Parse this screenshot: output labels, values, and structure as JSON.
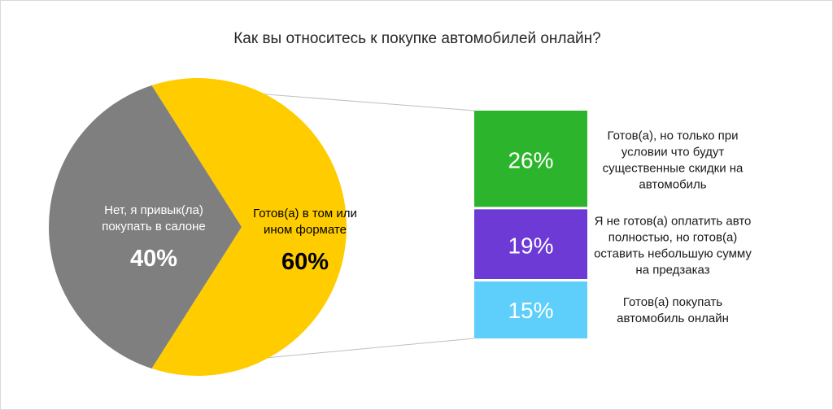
{
  "chart_data": {
    "type": "pie",
    "title": "Как вы относитесь к покупке автомобилей онлайн?",
    "slices": [
      {
        "label_lines": [
          "Нет, я привык(ла)",
          "покупать в салоне"
        ],
        "value_label": "40%",
        "value": 40,
        "color": "#7f7f7f",
        "text_color": "#ffffff"
      },
      {
        "label_lines": [
          "Готов(а) в том или",
          "ином формате"
        ],
        "value_label": "60%",
        "value": 60,
        "color": "#ffcc00",
        "text_color": "#000000"
      }
    ],
    "breakdown": {
      "of_slice": "Готов(а) в том или ином формате",
      "type": "stacked-bar",
      "segments": [
        {
          "value_label": "26%",
          "value": 26,
          "color": "#2cb52c",
          "note_lines": [
            "Готов(а), но только при",
            "условии что будут",
            "существенные скидки на",
            "автомобиль"
          ]
        },
        {
          "value_label": "19%",
          "value": 19,
          "color": "#6e3ad6",
          "note_lines": [
            "Я не готов(а) оплатить авто",
            "полностью, но готов(а)",
            "оставить небольшую сумму",
            "на предзаказ"
          ]
        },
        {
          "value_label": "15%",
          "value": 15,
          "color": "#5dcffa",
          "note_lines": [
            "Готов(а) покупать",
            "автомобиль онлайн"
          ]
        }
      ]
    }
  }
}
